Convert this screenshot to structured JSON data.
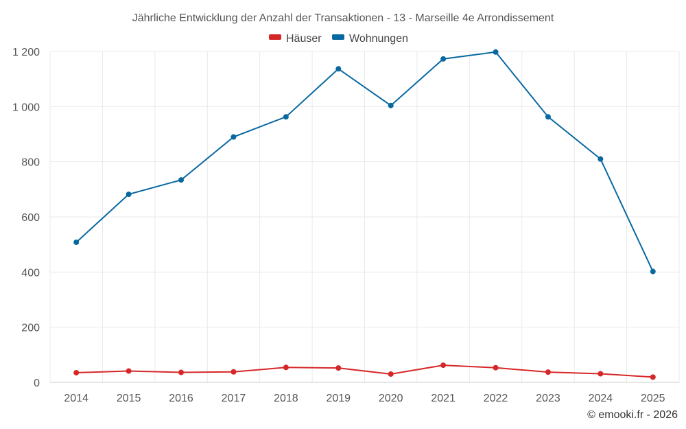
{
  "chart_data": {
    "type": "line",
    "title": "Jährliche Entwicklung der Anzahl der Transaktionen - 13 - Marseille 4e Arrondissement",
    "x": [
      "2014",
      "2015",
      "2016",
      "2017",
      "2018",
      "2019",
      "2020",
      "2021",
      "2022",
      "2023",
      "2024",
      "2025"
    ],
    "ylim": [
      0,
      1200
    ],
    "yticks": [
      0,
      200,
      400,
      600,
      800,
      1000,
      1200
    ],
    "ytick_labels": [
      "0",
      "200",
      "400",
      "600",
      "800",
      "1 000",
      "1 200"
    ],
    "grid": true,
    "legend_position": "top-center",
    "series": [
      {
        "name": "Häuser",
        "color": "#d62728",
        "values": [
          35,
          41,
          36,
          38,
          54,
          52,
          30,
          62,
          53,
          37,
          31,
          19
        ]
      },
      {
        "name": "Wohnungen",
        "color": "#0868a0",
        "values": [
          508,
          682,
          734,
          890,
          963,
          1137,
          1004,
          1173,
          1198,
          963,
          810,
          402
        ]
      }
    ]
  },
  "credit": "© emooki.fr - 2026"
}
